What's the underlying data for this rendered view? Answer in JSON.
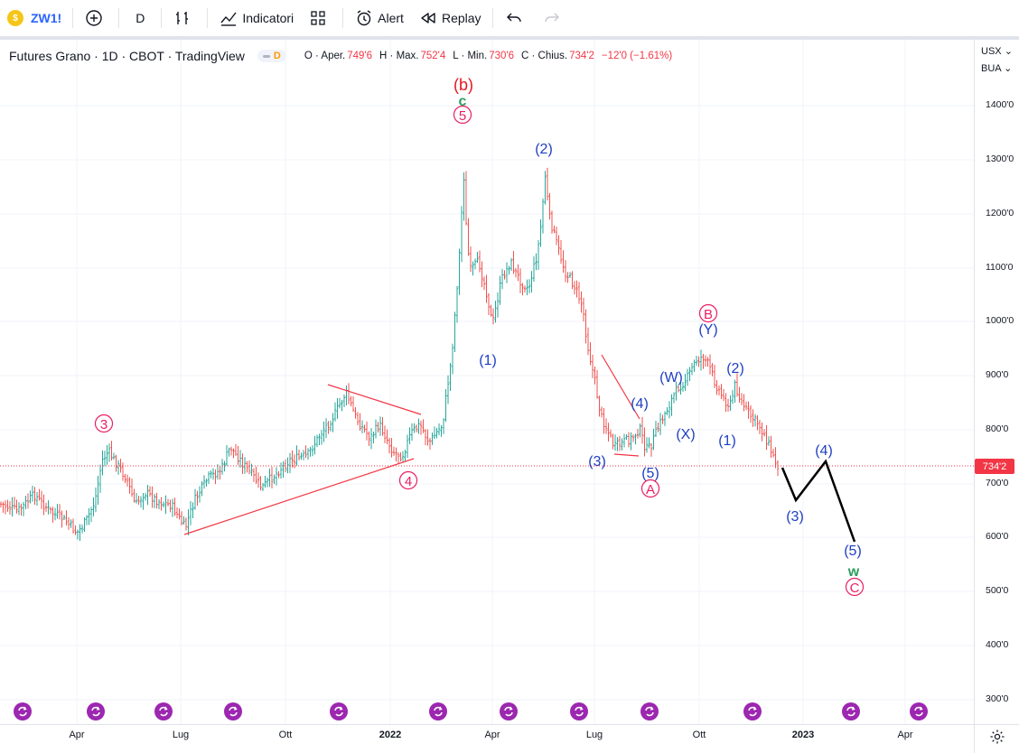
{
  "toolbar": {
    "symbol": "ZW1!",
    "interval": "D",
    "indicators_label": "Indicatori",
    "alert_label": "Alert",
    "replay_label": "Replay"
  },
  "legend": {
    "title": "Futures Grano · 1D · CBOT · TradingView",
    "badge": "D",
    "open_label": "O · Aper.",
    "open": "749'6",
    "high_label": "H · Max.",
    "high": "752'4",
    "low_label": "L · Min.",
    "low": "730'6",
    "close_label": "C · Chius.",
    "close": "734'2",
    "change": "−12'0 (−1.61%)"
  },
  "price_scale": {
    "currency": "USX",
    "unit": "BUA",
    "labels": [
      "1400'0",
      "1300'0",
      "1200'0",
      "1100'0",
      "1000'0",
      "900'0",
      "800'0",
      "700'0",
      "600'0",
      "500'0",
      "400'0",
      "300'0"
    ],
    "last_price": "734'2"
  },
  "time_scale": {
    "labels": [
      "Apr",
      "Lug",
      "Ott",
      "2022",
      "Apr",
      "Lug",
      "Ott",
      "2023",
      "Apr"
    ]
  },
  "wave_labels": {
    "b_top": "(b)",
    "c_top": "c",
    "five_top": "5",
    "three": "3",
    "four": "4",
    "one_1": "(1)",
    "two_1": "(2)",
    "three_1": "(3)",
    "four_1": "(4)",
    "five_1": "(5)",
    "A": "A",
    "W": "(W)",
    "X": "(X)",
    "Y": "(Y)",
    "B": "B",
    "two_2": "(2)",
    "one_2": "(1)",
    "three_2": "(3)",
    "four_2": "(4)",
    "five_2": "(5)",
    "w": "w",
    "C": "C"
  },
  "colors": {
    "up": "#26a69a",
    "down": "#ef5350",
    "wave_blue": "#1e3ec4",
    "wave_pink": "#e91e63",
    "wave_green": "#2e9d5d",
    "wave_red": "#e5161f",
    "trendline": "#f23645",
    "last_price_line": "#f23645",
    "event_icon": "#9c27b0"
  }
}
